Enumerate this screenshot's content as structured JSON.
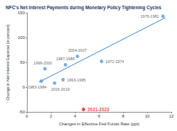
{
  "chart_data": {
    "type": "scatter",
    "title": "NFC's Net Interest Payments during Monetary Policy Tightening Cycles",
    "x_label": "Changes in Effective Fed Funds Rate (ppt)",
    "y_label": "Change in Net Interest Expense (in percent)",
    "xlim": [
      0,
      12
    ],
    "xticks": [
      0,
      2,
      4,
      6,
      8,
      10,
      12
    ],
    "ylim": [
      -50,
      150
    ],
    "yticks": [
      -50,
      0,
      50,
      100,
      150
    ],
    "grid": false,
    "series": [
      {
        "type": "scatter",
        "marker": "circle",
        "color": "#5b9bd5",
        "labels": [
          "1976-1981",
          "1972-1974",
          "2004-2007",
          "1987-1989",
          "1999-2000",
          "1983-1984",
          "2016-2019",
          "1993-1995",
          "2021-2023"
        ],
        "x": [
          11.3,
          6.2,
          4.2,
          3.2,
          1.5,
          1.2,
          2.3,
          3.0,
          4.7
        ],
        "values": [
          143,
          52,
          62,
          45,
          37,
          12,
          8,
          15,
          -45
        ],
        "colors": [
          "#5b9bd5",
          "#5b9bd5",
          "#5b9bd5",
          "#5b9bd5",
          "#5b9bd5",
          "#5b9bd5",
          "#5b9bd5",
          "#5b9bd5",
          "#e02020"
        ]
      },
      {
        "type": "line",
        "line_style": "solid",
        "color": "#5b9bd5",
        "x": [
          1.0,
          11.5
        ],
        "values": [
          10,
          140
        ]
      }
    ]
  }
}
